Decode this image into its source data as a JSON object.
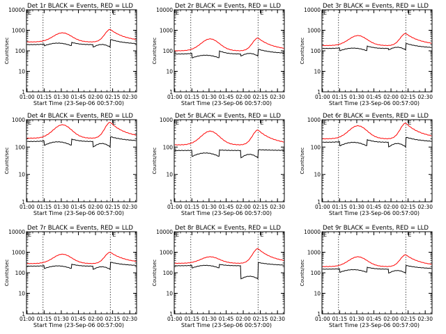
{
  "chart_data": [
    {
      "type": "line",
      "title": "Det 1r BLACK = Events, RED = LLD",
      "xlabel": "Start Time (23-Sep-06 00:57:00)",
      "ylabel": "Counts/sec",
      "ylim": [
        1,
        10000
      ],
      "y_scale": "log",
      "x_ticks": [
        "01:00",
        "01:15",
        "01:30",
        "01:45",
        "02:00",
        "02:15",
        "02:30"
      ],
      "y_ticks": [
        "1",
        "10",
        "100",
        "1000",
        "10000"
      ],
      "markers": [
        "01:14",
        "02:13"
      ],
      "flags": [
        "E",
        "E"
      ],
      "series": [
        {
          "name": "LLD",
          "color": "#ff0000",
          "base": 270,
          "peak": 750,
          "spike": 1100,
          "drops": []
        },
        {
          "name": "Events",
          "color": "#000000",
          "base": 200,
          "peak": 300,
          "spike": 360,
          "drops": [
            [
              "01:15",
              "01:39",
              175
            ],
            [
              "01:58",
              "02:13",
              150
            ]
          ]
        }
      ]
    },
    {
      "type": "line",
      "title": "Det 2r BLACK = Events, RED = LLD",
      "xlabel": "Start Time (23-Sep-06 00:57:00)",
      "ylabel": "Counts/sec",
      "ylim": [
        1,
        10000
      ],
      "y_scale": "log",
      "x_ticks": [
        "01:00",
        "01:15",
        "01:30",
        "01:45",
        "02:00",
        "02:15",
        "02:30"
      ],
      "y_ticks": [
        "1",
        "10",
        "100",
        "1000",
        "10000"
      ],
      "markers": [
        "01:14",
        "02:13"
      ],
      "flags": [
        "E",
        "E"
      ],
      "series": [
        {
          "name": "LLD",
          "color": "#ff0000",
          "base": 100,
          "peak": 380,
          "spike": 420,
          "drops": []
        },
        {
          "name": "Events",
          "color": "#000000",
          "base": 70,
          "peak": 120,
          "spike": 120,
          "drops": [
            [
              "01:15",
              "01:39",
              45
            ],
            [
              "01:58",
              "02:13",
              55
            ]
          ]
        }
      ]
    },
    {
      "type": "line",
      "title": "Det 3r BLACK = Events, RED = LLD",
      "xlabel": "Start Time (23-Sep-06 00:57:00)",
      "ylabel": "Counts/sec",
      "ylim": [
        1,
        10000
      ],
      "y_scale": "log",
      "x_ticks": [
        "01:00",
        "01:15",
        "01:30",
        "01:45",
        "02:00",
        "02:15",
        "02:30"
      ],
      "y_ticks": [
        "1",
        "10",
        "100",
        "1000",
        "10000"
      ],
      "markers": [
        "01:14",
        "02:13"
      ],
      "flags": [
        "E",
        "E"
      ],
      "series": [
        {
          "name": "LLD",
          "color": "#ff0000",
          "base": 180,
          "peak": 550,
          "spike": 700,
          "drops": []
        },
        {
          "name": "Events",
          "color": "#000000",
          "base": 130,
          "peak": 200,
          "spike": 230,
          "drops": [
            [
              "01:15",
              "01:39",
              100
            ],
            [
              "01:58",
              "02:13",
              110
            ]
          ]
        }
      ]
    },
    {
      "type": "line",
      "title": "Det 4r BLACK = Events, RED = LLD",
      "xlabel": "Start Time (23-Sep-06 00:57:00)",
      "ylabel": "Counts/sec",
      "ylim": [
        1,
        1000
      ],
      "y_scale": "log",
      "x_ticks": [
        "01:00",
        "01:15",
        "01:30",
        "01:45",
        "02:00",
        "02:15",
        "02:30"
      ],
      "y_ticks": [
        "1",
        "10",
        "100",
        "1000"
      ],
      "markers": [
        "01:14",
        "02:13"
      ],
      "flags": [
        "E",
        "E"
      ],
      "series": [
        {
          "name": "LLD",
          "color": "#ff0000",
          "base": 210,
          "peak": 650,
          "spike": 800,
          "drops": []
        },
        {
          "name": "Events",
          "color": "#000000",
          "base": 160,
          "peak": 220,
          "spike": 240,
          "drops": [
            [
              "01:15",
              "01:39",
              115
            ],
            [
              "01:58",
              "02:13",
              100
            ]
          ]
        }
      ]
    },
    {
      "type": "line",
      "title": "Det 5r BLACK = Events, RED = LLD",
      "xlabel": "Start Time (23-Sep-06 00:57:00)",
      "ylabel": "Counts/sec",
      "ylim": [
        1,
        1000
      ],
      "y_scale": "log",
      "x_ticks": [
        "01:00",
        "01:15",
        "01:30",
        "01:45",
        "02:00",
        "02:15",
        "02:30"
      ],
      "y_ticks": [
        "1",
        "10",
        "100",
        "1000"
      ],
      "markers": [
        "01:14",
        "02:13"
      ],
      "flags": [
        "E",
        "E"
      ],
      "series": [
        {
          "name": "LLD",
          "color": "#ff0000",
          "base": 120,
          "peak": 380,
          "spike": 420,
          "drops": []
        },
        {
          "name": "Events",
          "color": "#000000",
          "base": 75,
          "peak": 80,
          "spike": 80,
          "drops": [
            [
              "01:15",
              "01:39",
              45
            ],
            [
              "01:58",
              "02:13",
              40
            ]
          ]
        }
      ]
    },
    {
      "type": "line",
      "title": "Det 6r BLACK = Events, RED = LLD",
      "xlabel": "Start Time (23-Sep-06 00:57:00)",
      "ylabel": "Counts/sec",
      "ylim": [
        1,
        1000
      ],
      "y_scale": "log",
      "x_ticks": [
        "01:00",
        "01:15",
        "01:30",
        "01:45",
        "02:00",
        "02:15",
        "02:30"
      ],
      "y_ticks": [
        "1",
        "10",
        "100",
        "1000"
      ],
      "markers": [
        "01:14",
        "02:13"
      ],
      "flags": [
        "E",
        "E"
      ],
      "series": [
        {
          "name": "LLD",
          "color": "#ff0000",
          "base": 200,
          "peak": 600,
          "spike": 750,
          "drops": []
        },
        {
          "name": "Events",
          "color": "#000000",
          "base": 150,
          "peak": 210,
          "spike": 230,
          "drops": [
            [
              "01:15",
              "01:39",
              110
            ],
            [
              "01:58",
              "02:13",
              100
            ]
          ]
        }
      ]
    },
    {
      "type": "line",
      "title": "Det 7r BLACK = Events, RED = LLD",
      "xlabel": "Start Time (23-Sep-06 00:57:00)",
      "ylabel": "Counts/sec",
      "ylim": [
        1,
        10000
      ],
      "y_scale": "log",
      "x_ticks": [
        "01:00",
        "01:15",
        "01:30",
        "01:45",
        "02:00",
        "02:15",
        "02:30"
      ],
      "y_ticks": [
        "1",
        "10",
        "100",
        "1000",
        "10000"
      ],
      "markers": [
        "01:14",
        "02:13"
      ],
      "flags": [
        "E",
        "E"
      ],
      "series": [
        {
          "name": "LLD",
          "color": "#ff0000",
          "base": 280,
          "peak": 800,
          "spike": 1000,
          "drops": []
        },
        {
          "name": "Events",
          "color": "#000000",
          "base": 210,
          "peak": 300,
          "spike": 330,
          "drops": [
            [
              "01:15",
              "01:39",
              160
            ],
            [
              "01:58",
              "02:13",
              145
            ]
          ]
        }
      ]
    },
    {
      "type": "line",
      "title": "Det 8r BLACK = Events, RED = LLD",
      "xlabel": "Start Time (23-Sep-06 00:57:00)",
      "ylabel": "Counts/sec",
      "ylim": [
        1,
        10000
      ],
      "y_scale": "log",
      "x_ticks": [
        "01:00",
        "01:15",
        "01:30",
        "01:45",
        "02:00",
        "02:15",
        "02:30"
      ],
      "y_ticks": [
        "1",
        "10",
        "100",
        "1000",
        "10000"
      ],
      "markers": [
        "01:14",
        "02:13"
      ],
      "flags": [
        "E",
        "E"
      ],
      "series": [
        {
          "name": "LLD",
          "color": "#ff0000",
          "base": 290,
          "peak": 600,
          "spike": 1500,
          "drops": []
        },
        {
          "name": "Events",
          "color": "#000000",
          "base": 220,
          "peak": 280,
          "spike": 320,
          "drops": [
            [
              "01:15",
              "01:39",
              170
            ],
            [
              "01:58",
              "02:13",
              50
            ]
          ]
        }
      ]
    },
    {
      "type": "line",
      "title": "Det 9r BLACK = Events, RED = LLD",
      "xlabel": "Start Time (23-Sep-06 00:57:00)",
      "ylabel": "Counts/sec",
      "ylim": [
        1,
        10000
      ],
      "y_scale": "log",
      "x_ticks": [
        "01:00",
        "01:15",
        "01:30",
        "01:45",
        "02:00",
        "02:15",
        "02:30"
      ],
      "y_ticks": [
        "1",
        "10",
        "100",
        "1000",
        "10000"
      ],
      "markers": [
        "01:14",
        "02:13"
      ],
      "flags": [
        "E",
        "E"
      ],
      "series": [
        {
          "name": "LLD",
          "color": "#ff0000",
          "base": 200,
          "peak": 600,
          "spike": 750,
          "drops": []
        },
        {
          "name": "Events",
          "color": "#000000",
          "base": 150,
          "peak": 210,
          "spike": 230,
          "drops": [
            [
              "01:15",
              "01:39",
              105
            ],
            [
              "01:58",
              "02:13",
              95
            ]
          ]
        }
      ]
    }
  ]
}
